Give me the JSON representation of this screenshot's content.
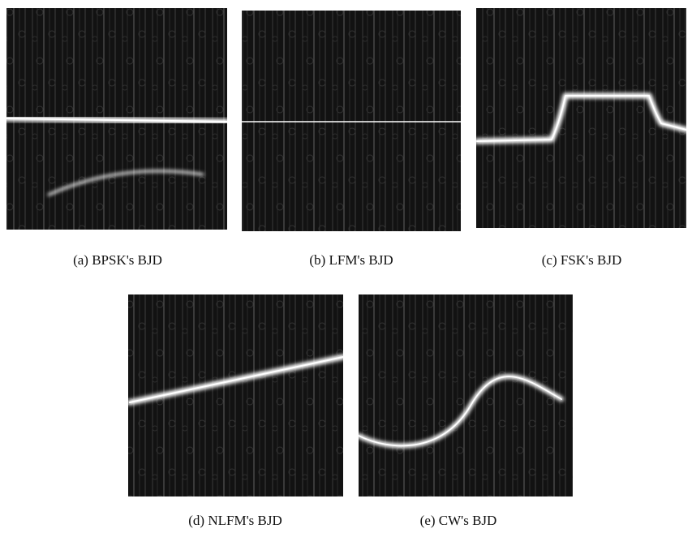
{
  "figure": {
    "panels": [
      {
        "caption": "(a)  BPSK's BJD"
      },
      {
        "caption": "(b)  LFM's BJD"
      },
      {
        "caption": "(c)  FSK's BJD"
      },
      {
        "caption": "(d)  NLFM's BJD"
      },
      {
        "caption": "(e)  CW's BJD"
      }
    ]
  }
}
